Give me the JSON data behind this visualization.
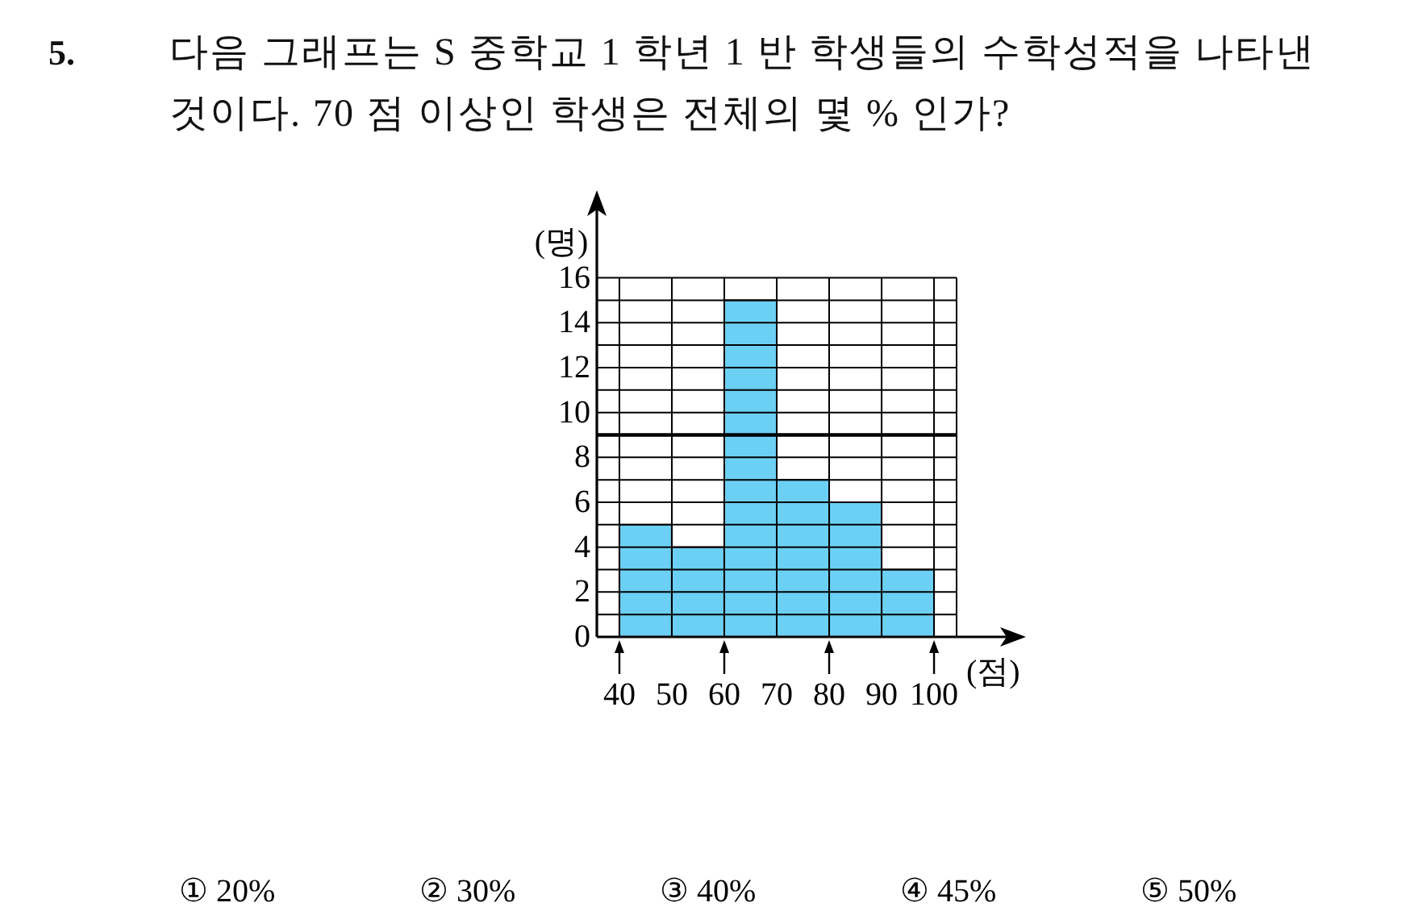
{
  "chart_data": {
    "type": "histogram",
    "title": "5. 다음 그래프는 S 중학교 1 학년 1 반 학생들의 수학성적을 나타낸 것이다. 70 점 이상인 학생은 전체의 몇 % 인가?",
    "xlabel": "(점)",
    "ylabel": "(명)",
    "bins": [
      40,
      50,
      60,
      70,
      80,
      90,
      100
    ],
    "values": [
      5,
      4,
      15,
      7,
      6,
      3
    ],
    "color": "#6ccff4",
    "xlim": [
      35.7,
      104.3
    ],
    "ylim": [
      0,
      16
    ],
    "xticks": [
      40,
      50,
      60,
      70,
      80,
      90,
      100
    ],
    "yticks": [
      0,
      {
        "value": 1,
        "label": null
      },
      2,
      {
        "value": 3,
        "label": null
      },
      4,
      {
        "value": 5,
        "label": null
      },
      6,
      {
        "value": 7,
        "label": null
      },
      8,
      {
        "value": 9,
        "label": null
      },
      10,
      {
        "value": 11,
        "label": null
      },
      12,
      {
        "value": 13,
        "label": null
      },
      14,
      {
        "value": 15,
        "label": null
      },
      16
    ],
    "grid": true,
    "ref_lines": [
      {
        "axis": "y",
        "value": 9,
        "color": "#000000"
      }
    ],
    "annotations": [
      "① 20%",
      "② 30%",
      "③ 40%",
      "④ 45%",
      "⑤ 50%"
    ]
  }
}
